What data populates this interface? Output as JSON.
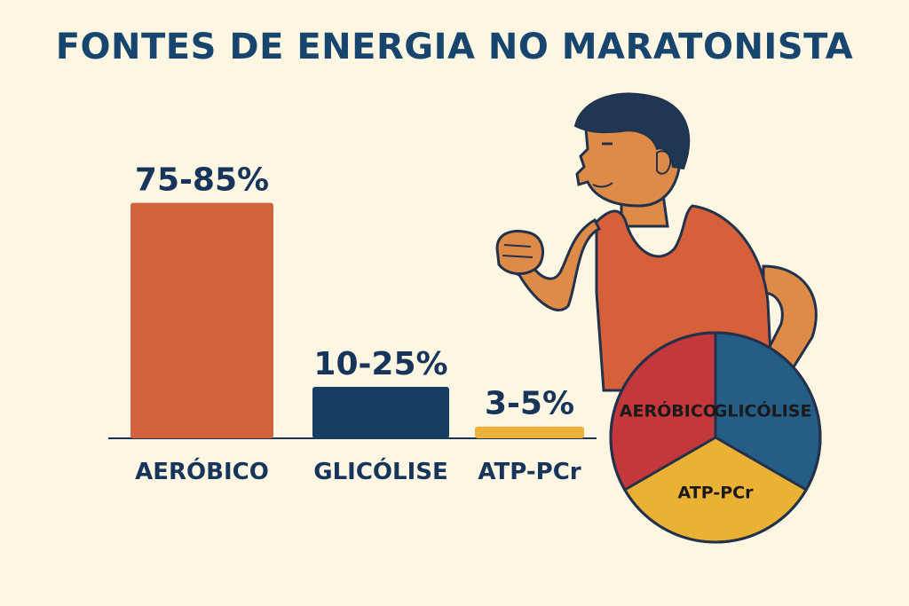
{
  "title": "FONTES DE ENERGIA NO MARATONISTA",
  "chart_data": [
    {
      "type": "bar",
      "categories": [
        "AERÓBICO",
        "GLICÓLISE",
        "ATP-PCr"
      ],
      "values": [
        80,
        17.5,
        4
      ],
      "value_labels": [
        "75-85%",
        "10-25%",
        "3-5%"
      ],
      "ylim": [
        0,
        85
      ],
      "colors": [
        "#d2623c",
        "#173d63",
        "#ecb23c"
      ],
      "grid": false
    },
    {
      "type": "pie",
      "categories": [
        "AERÓBICO",
        "GLICÓLISE",
        "ATP-PCr"
      ],
      "values": [
        33.3,
        33.3,
        33.3
      ],
      "colors": [
        "#c4373a",
        "#245d85",
        "#ebb135"
      ]
    }
  ]
}
